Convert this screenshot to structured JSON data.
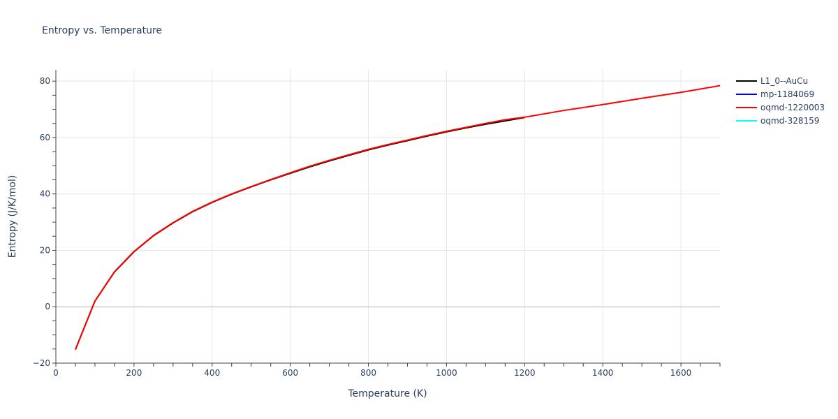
{
  "chart_data": {
    "type": "line",
    "title": "Entropy vs. Temperature",
    "xlabel": "Temperature (K)",
    "ylabel": "Entropy (J/K/mol)",
    "xlim": [
      0,
      1700
    ],
    "ylim": [
      -20,
      84
    ],
    "x_ticks": [
      0,
      200,
      400,
      600,
      800,
      1000,
      1200,
      1400,
      1600
    ],
    "y_ticks": [
      -20,
      0,
      20,
      40,
      60,
      80
    ],
    "grid": true,
    "legend_position": "right",
    "series": [
      {
        "name": "L1_0--AuCu",
        "color": "#000000",
        "x": [
          50,
          100,
          150,
          200,
          250,
          300,
          350,
          400,
          450,
          500,
          550,
          600,
          650,
          700,
          750,
          800,
          850,
          900,
          950,
          1000,
          1050,
          1100,
          1150,
          1200
        ],
        "y": [
          -15.2,
          2.0,
          12.3,
          19.5,
          25.2,
          29.7,
          33.7,
          37.0,
          39.9,
          42.5,
          45.0,
          47.3,
          49.6,
          51.7,
          53.7,
          55.6,
          57.3,
          58.9,
          60.5,
          62.0,
          63.4,
          64.7,
          65.9,
          67.1
        ]
      },
      {
        "name": "mp-1184069",
        "color": "#0000ff",
        "x": [],
        "y": []
      },
      {
        "name": "oqmd-1220003",
        "color": "#ff0000",
        "x": [
          50,
          100,
          150,
          200,
          250,
          300,
          350,
          400,
          450,
          500,
          550,
          600,
          650,
          700,
          750,
          800,
          850,
          900,
          950,
          1000,
          1050,
          1100,
          1150,
          1200,
          1300,
          1400,
          1500,
          1600,
          1700
        ],
        "y": [
          -15.2,
          2.0,
          12.4,
          19.6,
          25.3,
          29.8,
          33.8,
          37.1,
          40.0,
          42.6,
          45.1,
          47.5,
          49.8,
          51.9,
          53.9,
          55.8,
          57.5,
          59.1,
          60.7,
          62.2,
          63.6,
          65.0,
          66.3,
          67.2,
          69.6,
          71.7,
          73.9,
          76.0,
          78.4
        ]
      },
      {
        "name": "oqmd-328159",
        "color": "#00ffff",
        "x": [],
        "y": []
      }
    ]
  },
  "labels": {
    "title": "Entropy vs. Temperature",
    "xlabel": "Temperature (K)",
    "ylabel": "Entropy (J/K/mol)",
    "legend": [
      "L1_0--AuCu",
      "mp-1184069",
      "oqmd-1220003",
      "oqmd-328159"
    ]
  }
}
